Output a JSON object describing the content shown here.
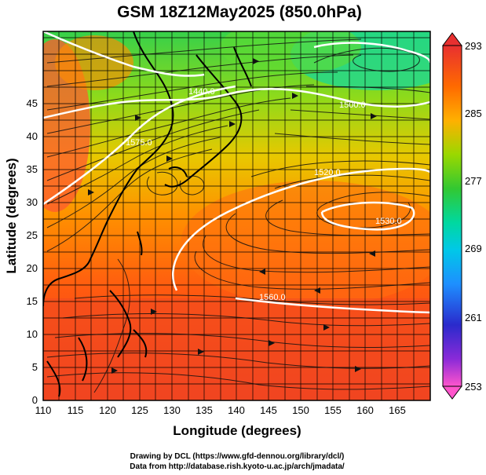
{
  "title": "GSM 18Z12May2025 (850.0hPa)",
  "xlabel": "Longitude (degrees)",
  "ylabel": "Latitude  (degrees)",
  "x_ticks": [
    "110",
    "115",
    "120",
    "125",
    "130",
    "135",
    "140",
    "145",
    "150",
    "155",
    "160",
    "165"
  ],
  "y_ticks": [
    "0",
    "5",
    "10",
    "15",
    "20",
    "25",
    "30",
    "35",
    "40",
    "45"
  ],
  "colorbar": {
    "labels": [
      "293",
      "285",
      "277",
      "269",
      "261",
      "253"
    ],
    "colors": [
      "#ff66cc",
      "#3333cc",
      "#1e90ff",
      "#00d8d0",
      "#32c832",
      "#9ad800",
      "#ffd700",
      "#ff8c00",
      "#ff4500",
      "#e83030"
    ]
  },
  "contour_labels": [
    "1440.0",
    "1500.0",
    "1520.0",
    "1530.0",
    "1560.0",
    "1575.0"
  ],
  "credits": [
    "Drawing by DCL (https://www.gfd-dennou.org/library/dcl/)",
    "Data from http://database.rish.kyoto-u.ac.jp/arch/jmadata/"
  ]
}
